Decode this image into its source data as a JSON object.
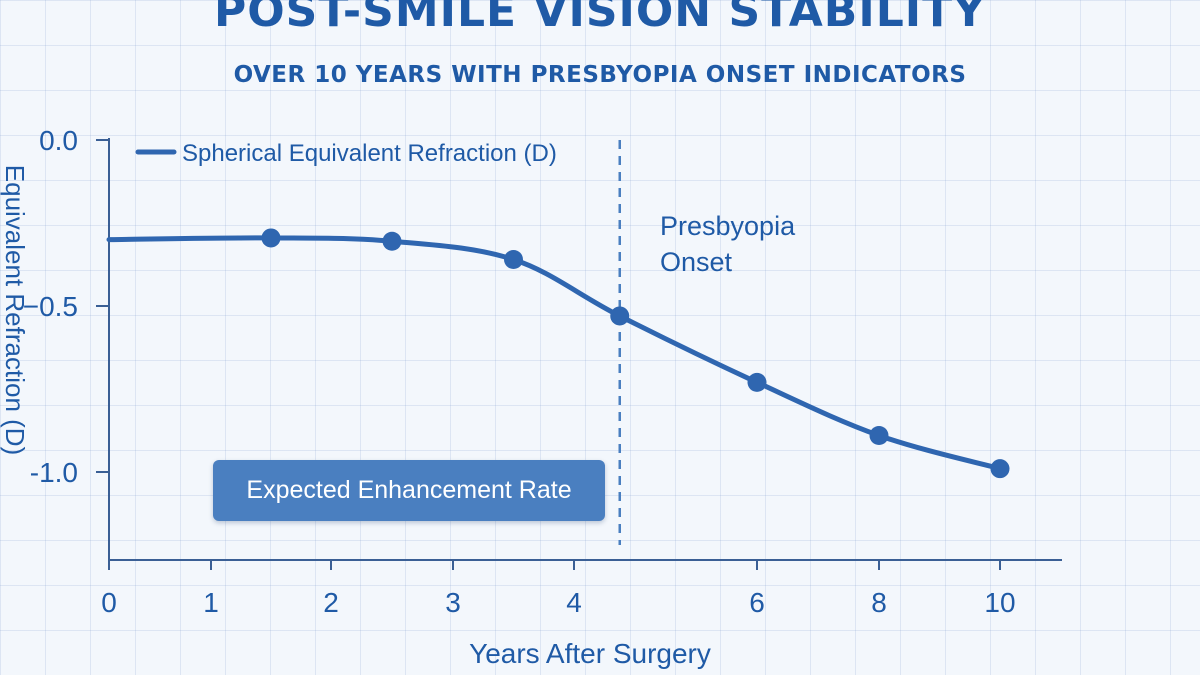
{
  "colors": {
    "accent": "#1f5aa6",
    "line": "#2f66b0",
    "background": "#f3f7fc",
    "box": "#4a7fc0"
  },
  "chart_data": {
    "type": "line",
    "title": "POST-SMILE VISION STABILITY",
    "subtitle": "OVER 10 YEARS WITH PRESBYOPIA ONSET INDICATORS",
    "xlabel": "Years After Surgery",
    "ylabel": "Equivalent Refraction (D)",
    "xlim": [
      0,
      10
    ],
    "ylim": [
      -1.25,
      0.0
    ],
    "x_ticks": [
      {
        "value": 0,
        "label": "0"
      },
      {
        "value": 1,
        "label": "1"
      },
      {
        "value": 2,
        "label": "2"
      },
      {
        "value": 3,
        "label": "3"
      },
      {
        "value": 4,
        "label": "4"
      },
      {
        "value": 6,
        "label": "6"
      },
      {
        "value": 8,
        "label": "8"
      },
      {
        "value": 10,
        "label": "10"
      }
    ],
    "y_ticks": [
      {
        "value": 0.0,
        "label": "0.0"
      },
      {
        "value": -0.5,
        "label": "−0.5"
      },
      {
        "value": -1.0,
        "label": "-1.0"
      }
    ],
    "series": [
      {
        "name": "Spherical Equivalent Refraction (D)",
        "line_points": [
          {
            "x": 0,
            "y": -0.3
          },
          {
            "x": 1.5,
            "y": -0.295
          },
          {
            "x": 2.5,
            "y": -0.305
          },
          {
            "x": 3.5,
            "y": -0.36
          },
          {
            "x": 4.5,
            "y": -0.53
          },
          {
            "x": 6,
            "y": -0.73
          },
          {
            "x": 8,
            "y": -0.89
          },
          {
            "x": 10,
            "y": -0.99
          }
        ],
        "markers": [
          {
            "x": 1.5,
            "y": -0.295
          },
          {
            "x": 2.5,
            "y": -0.305
          },
          {
            "x": 3.5,
            "y": -0.36
          },
          {
            "x": 4.5,
            "y": -0.53
          },
          {
            "x": 6,
            "y": -0.73
          },
          {
            "x": 8,
            "y": -0.89
          },
          {
            "x": 10,
            "y": -0.99
          }
        ]
      }
    ],
    "annotations": {
      "presbyopia_x": 4.5,
      "presbyopia_label_line1": "Presbyopia",
      "presbyopia_label_line2": "Onset",
      "enhancement_box": "Expected Enhancement Rate"
    },
    "legend": {
      "position": "top-left",
      "label": "Spherical Equivalent Refraction (D)"
    }
  }
}
